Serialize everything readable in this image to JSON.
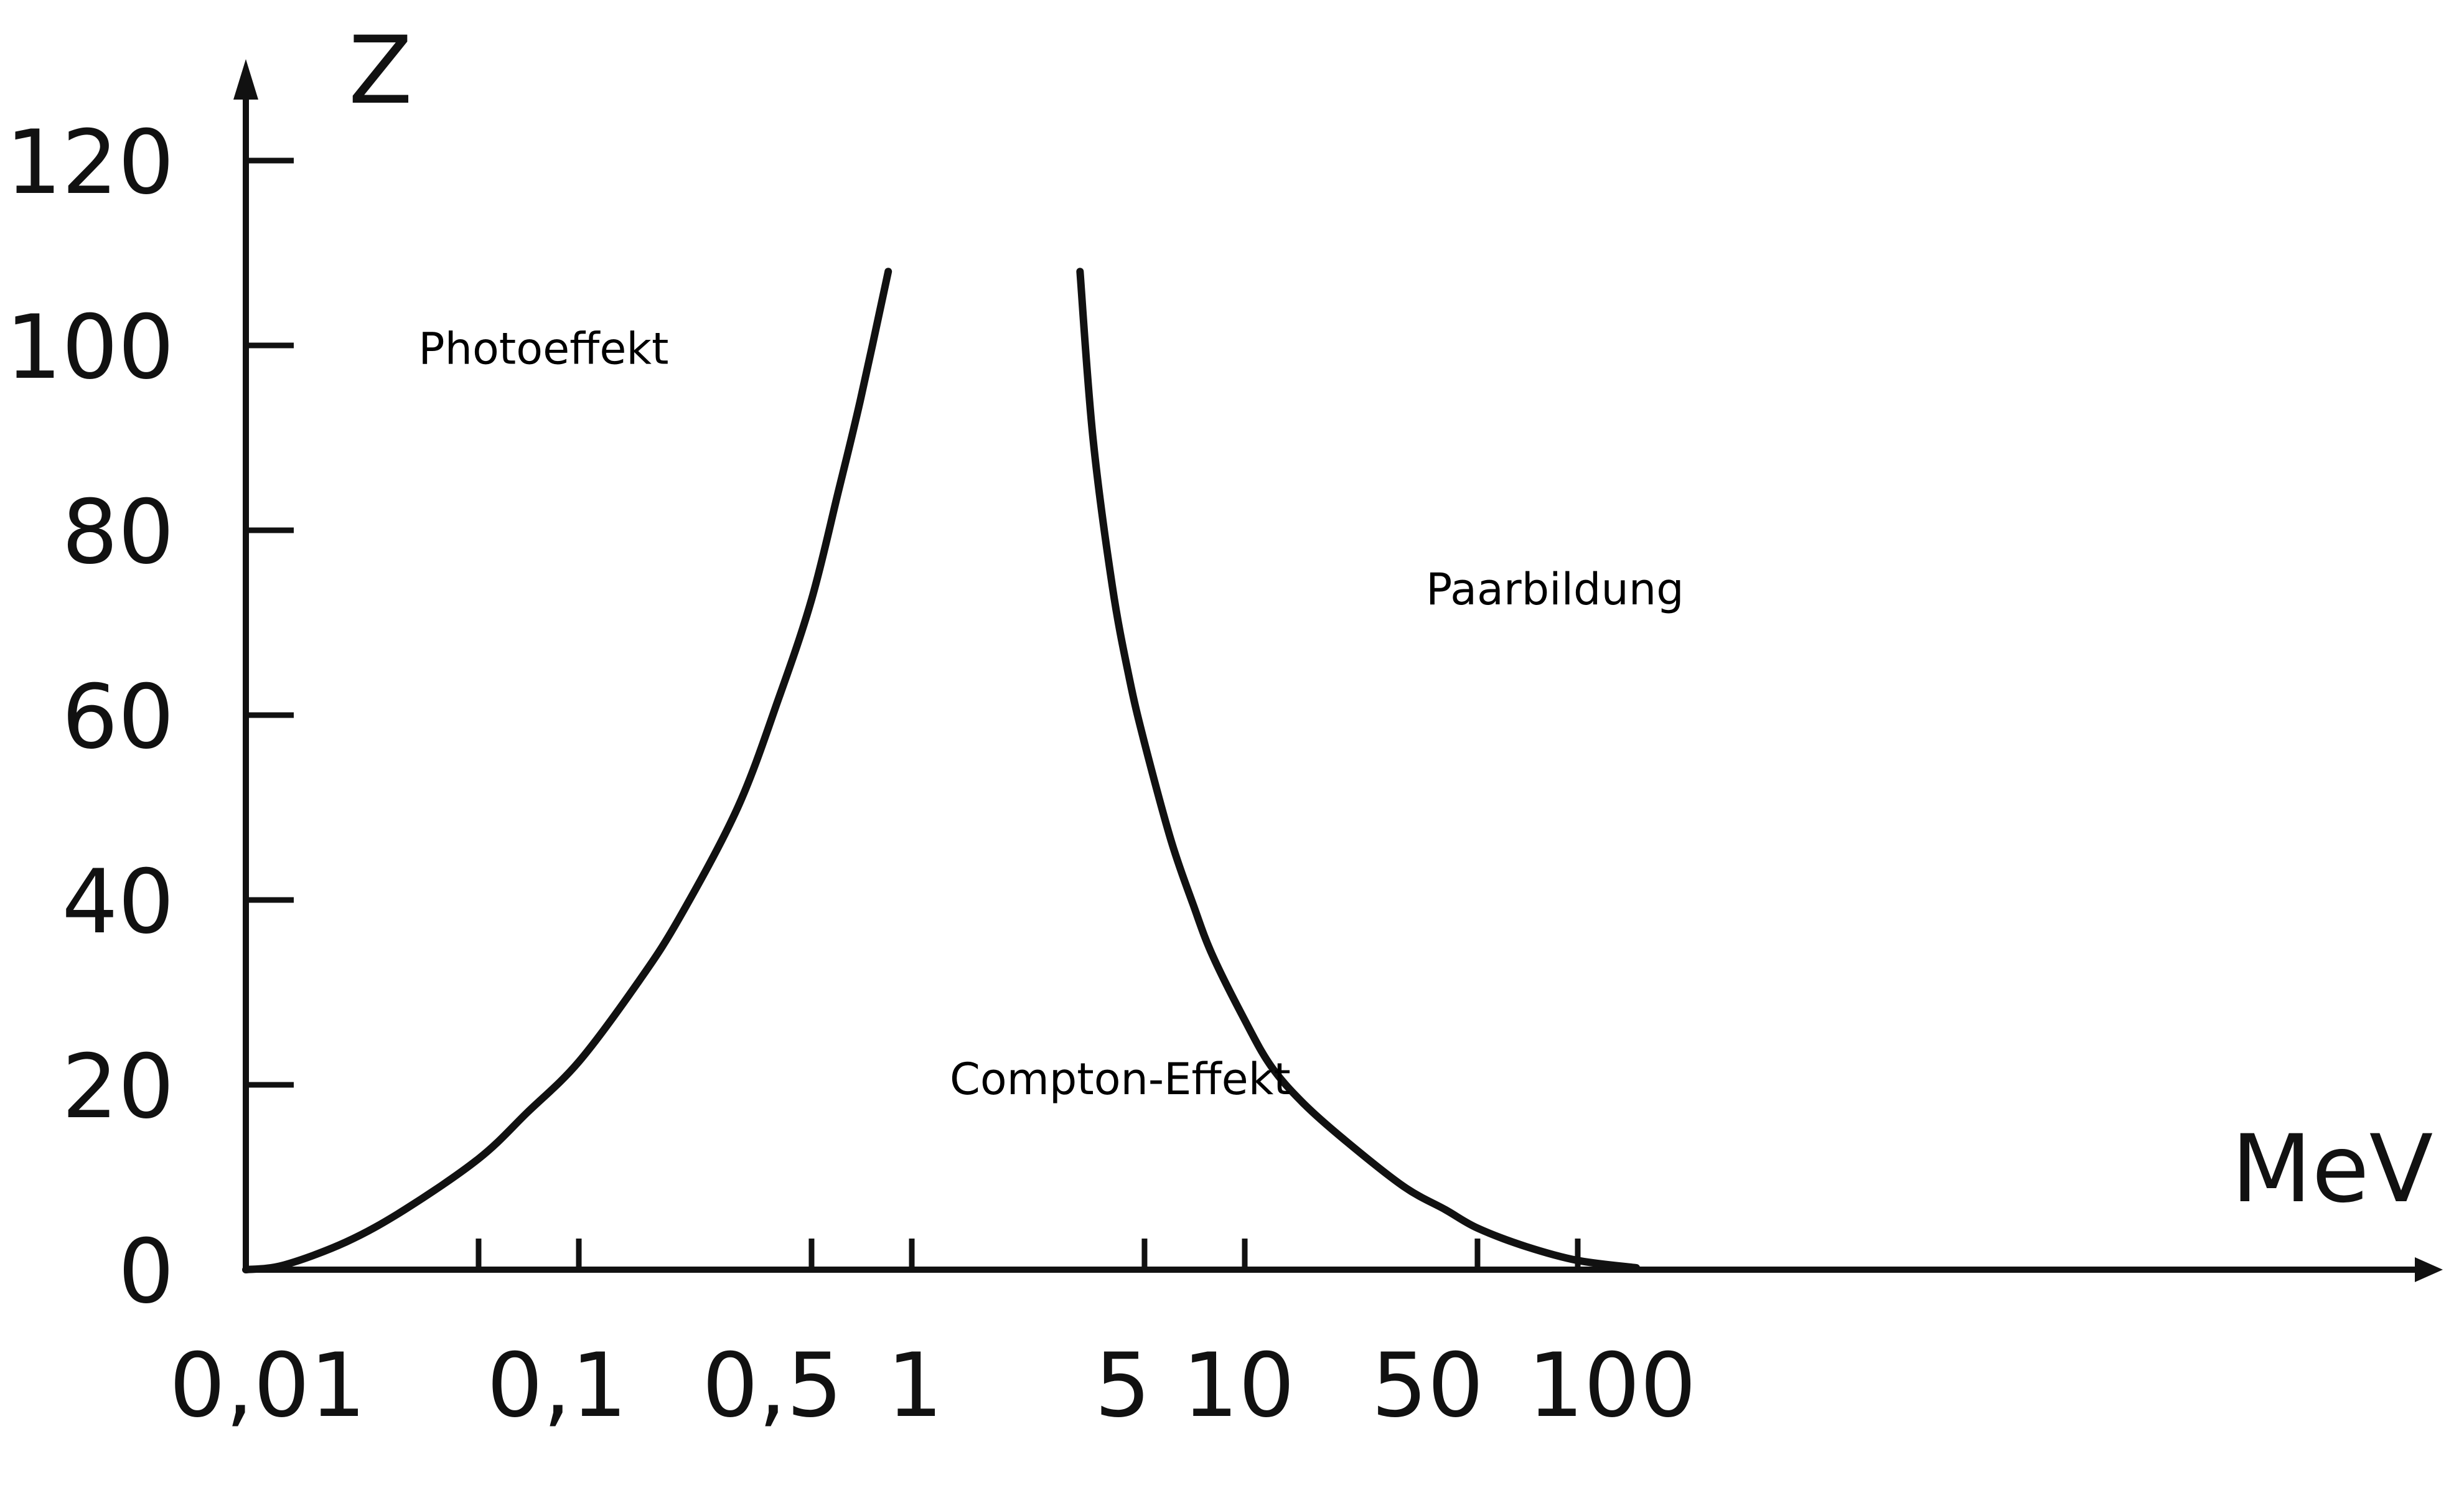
{
  "chart_data": {
    "type": "line",
    "title": "",
    "xlabel": "MeV",
    "ylabel": "Z",
    "x_scale": "log",
    "xlim": [
      0.01,
      200
    ],
    "ylim": [
      0,
      130
    ],
    "x_ticks": [
      0.01,
      0.05,
      0.1,
      0.5,
      1,
      5,
      10,
      50,
      100
    ],
    "x_tick_labels": [
      {
        "value": 0.01,
        "label": "0,01"
      },
      {
        "value": 0.1,
        "label": "0,1"
      },
      {
        "value": 0.5,
        "label": "0,5"
      },
      {
        "value": 1,
        "label": "1"
      },
      {
        "value": 5,
        "label": "5"
      },
      {
        "value": 10,
        "label": "10"
      },
      {
        "value": 50,
        "label": "50"
      },
      {
        "value": 100,
        "label": "100"
      }
    ],
    "y_ticks": [
      0,
      20,
      40,
      60,
      80,
      100,
      120
    ],
    "y_tick_labels": [
      "0",
      "20",
      "40",
      "60",
      "80",
      "100",
      "120"
    ],
    "grid": false,
    "annotations": [
      {
        "text": "Photoeffekt",
        "x": 0.033,
        "y": 98
      },
      {
        "text": "Compton-Effekt",
        "x": 1.3,
        "y": 19
      },
      {
        "text": "Paarbildung",
        "x": 35,
        "y": 72
      }
    ],
    "series": [
      {
        "color": "#111111",
        "x": [
          0.01,
          0.013,
          0.02,
          0.03,
          0.05,
          0.07,
          0.1,
          0.15,
          0.2,
          0.3,
          0.4,
          0.5,
          0.6,
          0.7,
          0.85
        ],
        "y": [
          0,
          0.5,
          3,
          6.5,
          12,
          17,
          22.5,
          31,
          38,
          50,
          62,
          72.5,
          84,
          94,
          108
        ]
      },
      {
        "color": "#111111",
        "x": [
          3.2,
          3.5,
          4,
          4.5,
          5,
          6,
          7,
          8,
          10,
          12,
          15,
          20,
          30,
          40,
          50,
          70,
          100,
          150
        ],
        "y": [
          108,
          90,
          74,
          64,
          57,
          46.5,
          39.5,
          34,
          27,
          22,
          18,
          14,
          9,
          6.5,
          4.5,
          2.5,
          1,
          0.2
        ]
      }
    ]
  }
}
